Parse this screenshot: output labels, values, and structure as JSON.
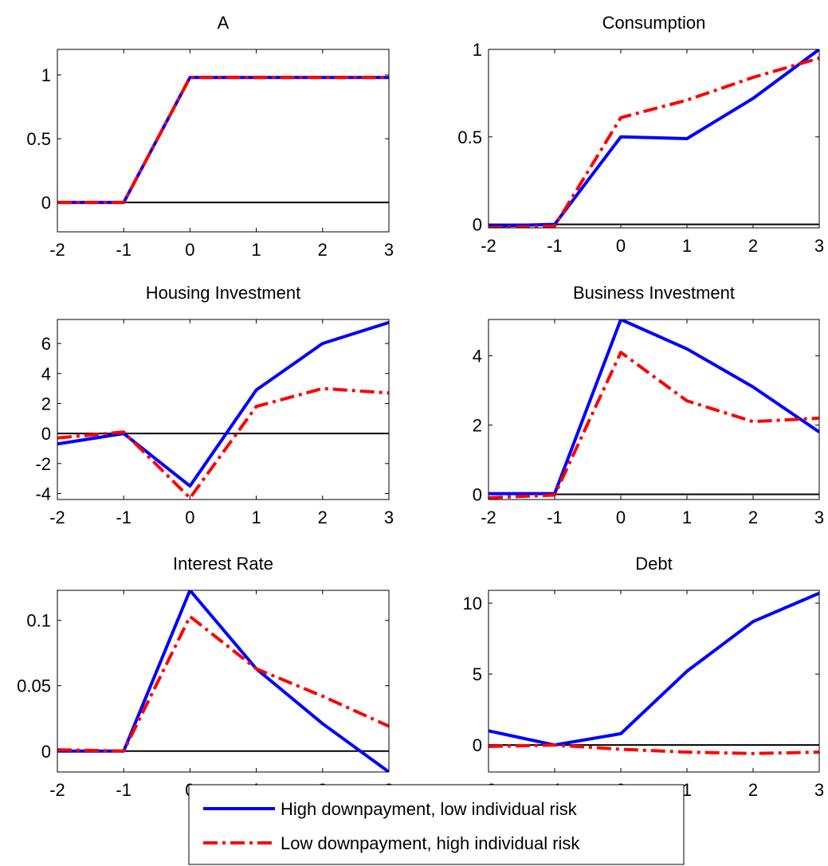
{
  "chart_data": [
    {
      "type": "line",
      "title": "A",
      "x": [
        -2,
        -1,
        0,
        1,
        2,
        3
      ],
      "xlim": [
        -2,
        3
      ],
      "xticks": [
        -2,
        -1,
        0,
        1,
        2,
        3
      ],
      "ylim": [
        -0.23,
        1.2
      ],
      "yticks": [
        0,
        0.5,
        1
      ],
      "series": [
        {
          "name": "High downpayment, low individual risk",
          "color": "#0000ff",
          "values": [
            0,
            0,
            0.98,
            0.98,
            0.98,
            0.98
          ]
        },
        {
          "name": "Low downpayment, high individual risk",
          "color": "#ff0000",
          "values": [
            0,
            0,
            0.98,
            0.98,
            0.98,
            0.98
          ]
        }
      ]
    },
    {
      "type": "line",
      "title": "Consumption",
      "x": [
        -2,
        -1,
        0,
        1,
        2,
        3
      ],
      "xlim": [
        -2,
        3
      ],
      "xticks": [
        -2,
        -1,
        0,
        1,
        2,
        3
      ],
      "ylim": [
        -0.02,
        1
      ],
      "yticks": [
        0,
        0.5,
        1
      ],
      "series": [
        {
          "color": "#0000ff",
          "values": [
            -0.01,
            0,
            0.5,
            0.49,
            0.72,
            1.0
          ]
        },
        {
          "color": "#ff0000",
          "values": [
            -0.02,
            -0.01,
            0.61,
            0.71,
            0.84,
            0.95
          ]
        }
      ]
    },
    {
      "type": "line",
      "title": "Housing Investment",
      "x": [
        -2,
        -1,
        0,
        1,
        2,
        3
      ],
      "xlim": [
        -2,
        3
      ],
      "xticks": [
        -2,
        -1,
        0,
        1,
        2,
        3
      ],
      "ylim": [
        -4.4,
        7.6
      ],
      "yticks": [
        -4,
        -2,
        0,
        2,
        4,
        6
      ],
      "series": [
        {
          "color": "#0000ff",
          "values": [
            -0.7,
            0,
            -3.5,
            2.9,
            6,
            7.4
          ]
        },
        {
          "color": "#ff0000",
          "values": [
            -0.3,
            0.1,
            -4.3,
            1.8,
            3.0,
            2.7
          ]
        }
      ]
    },
    {
      "type": "line",
      "title": "Business Investment",
      "x": [
        -2,
        -1,
        0,
        1,
        2,
        3
      ],
      "xlim": [
        -2,
        3
      ],
      "xticks": [
        -2,
        -1,
        0,
        1,
        2,
        3
      ],
      "ylim": [
        -0.15,
        5.05
      ],
      "yticks": [
        0,
        2,
        4
      ],
      "series": [
        {
          "color": "#0000ff",
          "values": [
            0.02,
            0.02,
            5.05,
            4.2,
            3.1,
            1.8
          ]
        },
        {
          "color": "#ff0000",
          "values": [
            -0.1,
            -0.02,
            4.1,
            2.7,
            2.1,
            2.2
          ]
        }
      ]
    },
    {
      "type": "line",
      "title": "Interest Rate",
      "x": [
        -2,
        -1,
        0,
        1,
        2,
        3
      ],
      "xlim": [
        -2,
        3
      ],
      "xticks": [
        -2,
        -1,
        0,
        1,
        2,
        3
      ],
      "ylim": [
        -0.016,
        0.123
      ],
      "yticks": [
        0,
        0.05,
        0.1
      ],
      "series": [
        {
          "color": "#0000ff",
          "values": [
            0,
            0,
            0.123,
            0.063,
            0.021,
            -0.016
          ]
        },
        {
          "color": "#ff0000",
          "values": [
            0.001,
            0,
            0.103,
            0.063,
            0.042,
            0.019
          ]
        }
      ]
    },
    {
      "type": "line",
      "title": "Debt",
      "x": [
        -2,
        -1,
        0,
        1,
        2,
        3
      ],
      "xlim": [
        -2,
        3
      ],
      "xticks": [
        -2,
        -1,
        0,
        1,
        2,
        3
      ],
      "ylim": [
        -1.9,
        10.9
      ],
      "yticks": [
        0,
        5,
        10
      ],
      "series": [
        {
          "color": "#0000ff",
          "values": [
            1.0,
            0,
            0.8,
            5.2,
            8.7,
            10.7
          ]
        },
        {
          "color": "#ff0000",
          "values": [
            -0.1,
            0,
            -0.3,
            -0.5,
            -0.6,
            -0.5
          ]
        }
      ]
    }
  ]
}
